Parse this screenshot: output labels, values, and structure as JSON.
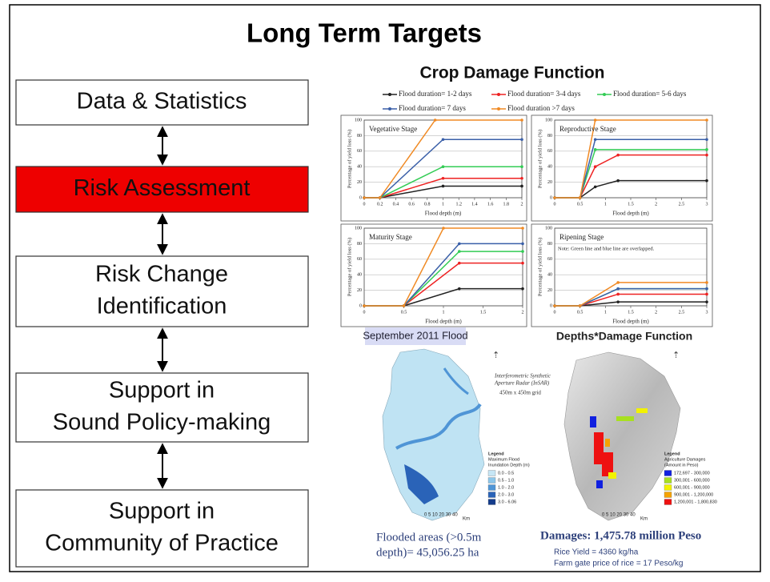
{
  "title": "Long Term Targets",
  "flow": {
    "boxes": [
      {
        "lines": [
          "Data & Statistics"
        ]
      },
      {
        "lines": [
          "Risk Assessment"
        ],
        "highlight": "#ee0000"
      },
      {
        "lines": [
          "Risk Change",
          "Identification"
        ]
      },
      {
        "lines": [
          "Support in",
          "Sound Policy-making"
        ]
      },
      {
        "lines": [
          "Support in",
          "Community of Practice"
        ]
      }
    ]
  },
  "crop_damage": {
    "type": "line",
    "title": "Crop Damage Function",
    "series": [
      {
        "name": "Flood duration= 1-2 days",
        "color": "#222222"
      },
      {
        "name": "Flood duration= 3-4 days",
        "color": "#ee2222"
      },
      {
        "name": "Flood duration= 5-6 days",
        "color": "#33cc55"
      },
      {
        "name": "Flood duration= 7 days",
        "color": "#3a5fa8"
      },
      {
        "name": "Flood duration >7 days",
        "color": "#f08a24"
      }
    ],
    "panels": [
      {
        "title": "Vegetative Stage",
        "xlabel": "Flood depth (m)",
        "ylabel": "Percentage of yield loss (%)",
        "xlim": [
          0,
          2
        ],
        "ylim": [
          0,
          100
        ],
        "xticks": [
          0,
          0.2,
          0.4,
          0.6,
          0.8,
          1,
          1.2,
          1.4,
          1.6,
          1.8,
          2
        ],
        "yticks": [
          0,
          20,
          40,
          60,
          80,
          100
        ],
        "series": [
          {
            "x": [
              0,
              0.2,
              1,
              2
            ],
            "values": [
              0,
              0,
              15,
              15
            ]
          },
          {
            "x": [
              0,
              0.2,
              1,
              2
            ],
            "values": [
              0,
              0,
              25,
              25
            ]
          },
          {
            "x": [
              0,
              0.2,
              1,
              2
            ],
            "values": [
              0,
              0,
              40,
              40
            ]
          },
          {
            "x": [
              0,
              0.2,
              1,
              2
            ],
            "values": [
              0,
              0,
              75,
              75
            ]
          },
          {
            "x": [
              0,
              0.2,
              0.9,
              2
            ],
            "values": [
              0,
              0,
              100,
              100
            ]
          }
        ]
      },
      {
        "title": "Reproductive Stage",
        "xlabel": "Flood depth (m)",
        "ylabel": "Percentage of yield loss (%)",
        "xlim": [
          0,
          3
        ],
        "ylim": [
          0,
          100
        ],
        "xticks": [
          0,
          0.5,
          1,
          1.5,
          2,
          2.5,
          3
        ],
        "yticks": [
          0,
          20,
          40,
          60,
          80,
          100
        ],
        "series": [
          {
            "x": [
              0,
              0.5,
              0.8,
              1.25,
              3
            ],
            "values": [
              0,
              0,
              14,
              22,
              22
            ]
          },
          {
            "x": [
              0,
              0.5,
              0.8,
              1.25,
              3
            ],
            "values": [
              0,
              0,
              40,
              55,
              55
            ]
          },
          {
            "x": [
              0,
              0.5,
              0.8,
              3
            ],
            "values": [
              0,
              0,
              62,
              62
            ]
          },
          {
            "x": [
              0,
              0.5,
              0.8,
              3
            ],
            "values": [
              0,
              0,
              75,
              75
            ]
          },
          {
            "x": [
              0,
              0.5,
              0.8,
              3
            ],
            "values": [
              0,
              0,
              100,
              100
            ]
          }
        ]
      },
      {
        "title": "Maturity Stage",
        "xlabel": "Flood depth (m)",
        "ylabel": "Percentage of yield loss (%)",
        "xlim": [
          0,
          2
        ],
        "ylim": [
          0,
          100
        ],
        "xticks": [
          0,
          0.5,
          1,
          1.5,
          2
        ],
        "yticks": [
          0,
          20,
          40,
          60,
          80,
          100
        ],
        "series": [
          {
            "x": [
              0,
              0.5,
              1.2,
              2
            ],
            "values": [
              0,
              0,
              22,
              22
            ]
          },
          {
            "x": [
              0,
              0.5,
              1.2,
              2
            ],
            "values": [
              0,
              0,
              55,
              55
            ]
          },
          {
            "x": [
              0,
              0.5,
              1.2,
              2
            ],
            "values": [
              0,
              0,
              70,
              70
            ]
          },
          {
            "x": [
              0,
              0.5,
              1.2,
              2
            ],
            "values": [
              0,
              0,
              80,
              80
            ]
          },
          {
            "x": [
              0,
              0.5,
              1,
              2
            ],
            "values": [
              0,
              0,
              100,
              100
            ]
          }
        ]
      },
      {
        "title": "Ripening Stage",
        "note": "Note: Green line and blue line are overlapped.",
        "xlabel": "Flood depth (m)",
        "ylabel": "Percentage of yield loss (%)",
        "xlim": [
          0,
          3
        ],
        "ylim": [
          0,
          100
        ],
        "xticks": [
          0,
          0.5,
          1,
          1.5,
          2,
          2.5,
          3
        ],
        "yticks": [
          0,
          20,
          40,
          60,
          80,
          100
        ],
        "series": [
          {
            "x": [
              0,
              0.5,
              1.25,
              3
            ],
            "values": [
              0,
              0,
              5,
              5
            ]
          },
          {
            "x": [
              0,
              0.5,
              1.25,
              3
            ],
            "values": [
              0,
              0,
              15,
              15
            ]
          },
          {
            "x": [
              0,
              0.5,
              1.25,
              3
            ],
            "values": [
              0,
              0,
              22,
              22
            ]
          },
          {
            "x": [
              0,
              0.5,
              1.25,
              3
            ],
            "values": [
              0,
              0,
              22,
              22
            ]
          },
          {
            "x": [
              0,
              0.5,
              1.25,
              3
            ],
            "values": [
              0,
              0,
              30,
              30
            ]
          }
        ]
      }
    ]
  },
  "flood_map": {
    "title": "September 2011 Flood",
    "source": [
      "Interferometric Synthetic",
      "Aperture Radar (InSAR)"
    ],
    "grid": "450m x 450m grid",
    "legend_title": [
      "Legend",
      "Maximum Flood",
      "Inundation Depth (m)"
    ],
    "legend": [
      {
        "label": "0.0 - 0.5",
        "color": "#c6e6f5"
      },
      {
        "label": "0.5 - 1.0",
        "color": "#8cc6ea"
      },
      {
        "label": "1.0 - 2.0",
        "color": "#4f95d6"
      },
      {
        "label": "2.0 - 3.0",
        "color": "#2a63b8"
      },
      {
        "label": "3.0 - 6.06",
        "color": "#143c8c"
      }
    ],
    "scale": "0  5 10    20    30    40",
    "scale_unit": "Km",
    "caption": [
      "Flooded areas (>0.5m",
      "depth)= 45,056.25 ha"
    ]
  },
  "damage_map": {
    "title": "Depths*Damage Function",
    "legend_title": [
      "Legend",
      "Agriculture Damages",
      "(Amount in Peso)"
    ],
    "legend": [
      {
        "label": "172,697 - 300,000",
        "color": "#1020e0"
      },
      {
        "label": "300,001 - 600,000",
        "color": "#a8e020"
      },
      {
        "label": "600,001 - 900,000",
        "color": "#f2f200"
      },
      {
        "label": "900,001 - 1,200,000",
        "color": "#f5a300"
      },
      {
        "label": "1,200,001 - 1,800,830",
        "color": "#ee1111"
      }
    ],
    "scale": "0  5 10    20    30    40",
    "scale_unit": "Km",
    "caption": "Damages: 1,475.78 million Peso",
    "notes": [
      "Rice Yield = 4360 kg/ha",
      "Farm gate price of rice = 17 Peso/kg"
    ]
  }
}
